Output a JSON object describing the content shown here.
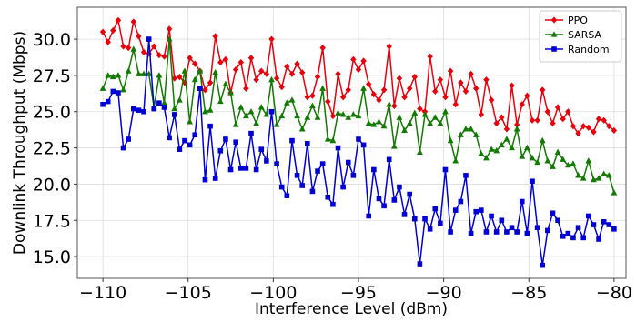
{
  "chart_data": {
    "type": "line",
    "xlabel": "Interference Level (dBm)",
    "ylabel": "Downlink Throughput (Mbps)",
    "xlim": [
      -111.5,
      -79.3
    ],
    "ylim": [
      13.5,
      32.2
    ],
    "xticks": [
      -110,
      -105,
      -100,
      -95,
      -90,
      -85,
      -80
    ],
    "yticks": [
      15.0,
      17.5,
      20.0,
      22.5,
      25.0,
      27.5,
      30.0
    ],
    "grid": true,
    "legend_position": "top-right",
    "x": [
      -110,
      -109.7,
      -109.4,
      -109.1,
      -108.8,
      -108.5,
      -108.2,
      -107.9,
      -107.6,
      -107.3,
      -107,
      -106.7,
      -106.4,
      -106.1,
      -105.8,
      -105.5,
      -105.2,
      -104.9,
      -104.6,
      -104.3,
      -104,
      -103.7,
      -103.4,
      -103.1,
      -102.8,
      -102.5,
      -102.2,
      -101.9,
      -101.6,
      -101.3,
      -101,
      -100.7,
      -100.4,
      -100.1,
      -99.8,
      -99.5,
      -99.2,
      -98.9,
      -98.6,
      -98.3,
      -98,
      -97.7,
      -97.4,
      -97.1,
      -96.8,
      -96.5,
      -96.2,
      -95.9,
      -95.6,
      -95.3,
      -95,
      -94.7,
      -94.4,
      -94.1,
      -93.8,
      -93.5,
      -93.2,
      -92.9,
      -92.6,
      -92.3,
      -92,
      -91.7,
      -91.4,
      -91.1,
      -90.8,
      -90.5,
      -90.2,
      -89.9,
      -89.6,
      -89.3,
      -89,
      -88.7,
      -88.4,
      -88.1,
      -87.8,
      -87.5,
      -87.2,
      -86.9,
      -86.6,
      -86.3,
      -86,
      -85.7,
      -85.4,
      -85.1,
      -84.8,
      -84.5,
      -84.2,
      -83.9,
      -83.6,
      -83.3,
      -83,
      -82.7,
      -82.4,
      -82.1,
      -81.8,
      -81.5,
      -81.2,
      -80.9,
      -80.6,
      -80.3,
      -80
    ],
    "series": [
      {
        "name": "PPO",
        "color": "#e8000b",
        "marker": "diamond",
        "values": [
          30.5,
          29.8,
          30.6,
          31.3,
          29.5,
          29.4,
          31.2,
          30.2,
          29.1,
          29.0,
          29.5,
          28.9,
          28.8,
          30.7,
          27.3,
          27.4,
          27.0,
          28.7,
          28.3,
          27.8,
          26.5,
          27.0,
          30.2,
          28.4,
          28.6,
          26.3,
          27.9,
          28.4,
          26.6,
          28.7,
          27.2,
          27.8,
          27.6,
          30.0,
          27.3,
          26.7,
          28.1,
          27.6,
          28.3,
          27.7,
          26.0,
          26.1,
          27.4,
          29.4,
          25.7,
          24.7,
          27.6,
          26.0,
          26.5,
          28.6,
          27.9,
          28.5,
          26.9,
          26.2,
          25.8,
          26.5,
          29.5,
          25.4,
          27.3,
          26.0,
          26.6,
          27.4,
          25.2,
          25.0,
          28.8,
          26.4,
          27.2,
          26.0,
          27.8,
          25.5,
          27.0,
          26.4,
          27.6,
          26.6,
          24.8,
          27.2,
          25.8,
          24.2,
          24.6,
          23.8,
          26.8,
          24.1,
          25.5,
          26.1,
          24.4,
          24.4,
          26.5,
          25.0,
          24.2,
          25.3,
          24.5,
          25.0,
          24.0,
          23.5,
          24.0,
          23.9,
          23.6,
          24.5,
          24.4,
          24.0,
          23.7
        ]
      },
      {
        "name": "SARSA",
        "color": "#117a00",
        "marker": "triangle",
        "values": [
          26.6,
          27.5,
          27.4,
          27.5,
          26.5,
          27.8,
          29.3,
          27.6,
          27.6,
          27.6,
          25.3,
          27.5,
          25.6,
          30.0,
          25.2,
          25.8,
          27.8,
          24.3,
          27.2,
          27.8,
          25.0,
          25.1,
          27.7,
          25.7,
          26.9,
          26.3,
          24.1,
          25.3,
          24.7,
          25.0,
          24.2,
          25.3,
          24.8,
          27.2,
          24.1,
          24.7,
          25.6,
          25.8,
          24.7,
          23.8,
          24.6,
          25.4,
          24.6,
          26.6,
          23.1,
          23.0,
          24.9,
          24.8,
          24.6,
          24.8,
          24.7,
          26.6,
          24.2,
          24.1,
          24.3,
          24.0,
          25.5,
          22.6,
          24.6,
          23.7,
          24.2,
          24.9,
          22.2,
          24.8,
          24.2,
          24.6,
          24.2,
          25.0,
          23.0,
          21.6,
          23.4,
          23.8,
          23.8,
          23.4,
          22.1,
          21.8,
          22.4,
          22.3,
          22.7,
          23.1,
          22.5,
          23.8,
          21.9,
          22.5,
          21.8,
          21.5,
          23.0,
          21.6,
          21.2,
          22.2,
          21.7,
          21.3,
          21.4,
          20.6,
          20.4,
          21.6,
          20.3,
          20.4,
          20.7,
          20.6,
          19.4
        ]
      },
      {
        "name": "Random",
        "color": "#0000d6",
        "marker": "square",
        "values": [
          25.5,
          25.7,
          26.4,
          26.3,
          22.5,
          23.1,
          25.2,
          25.1,
          25.0,
          30.0,
          25.2,
          25.6,
          25.3,
          23.2,
          24.8,
          22.4,
          23.0,
          22.7,
          23.4,
          26.6,
          20.3,
          24.0,
          20.4,
          22.3,
          23.1,
          21.0,
          22.9,
          21.1,
          21.1,
          23.5,
          21.0,
          22.4,
          21.6,
          25.0,
          21.4,
          19.8,
          19.2,
          23.0,
          20.6,
          19.9,
          22.8,
          19.5,
          20.9,
          21.4,
          19.1,
          18.6,
          22.5,
          19.8,
          21.5,
          20.6,
          23.1,
          22.7,
          17.8,
          21.0,
          19.0,
          18.5,
          21.7,
          18.9,
          19.8,
          17.9,
          19.3,
          17.6,
          14.5,
          17.6,
          16.9,
          18.3,
          17.3,
          21.0,
          16.7,
          18.2,
          18.8,
          20.6,
          16.6,
          18.1,
          18.2,
          16.7,
          17.8,
          16.7,
          17.5,
          16.7,
          17.0,
          16.7,
          18.8,
          16.6,
          20.2,
          17.0,
          14.4,
          16.8,
          18.0,
          17.5,
          16.4,
          16.6,
          16.3,
          17.0,
          16.3,
          17.8,
          17.2,
          16.2,
          17.4,
          17.2,
          16.9
        ]
      }
    ]
  }
}
